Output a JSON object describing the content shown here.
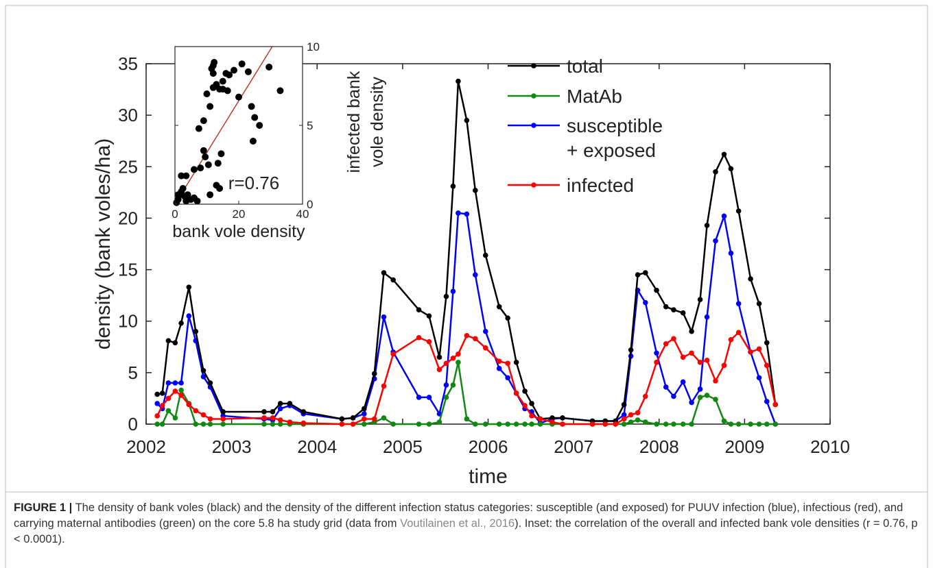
{
  "chart_data": [
    {
      "type": "line",
      "xlabel": "time",
      "ylabel": "density (bank voles/ha)",
      "xlim": [
        2002,
        2010
      ],
      "ylim": [
        0,
        35
      ],
      "xticks": [
        2002,
        2003,
        2004,
        2005,
        2006,
        2007,
        2008,
        2009,
        2010
      ],
      "yticks": [
        0,
        5,
        10,
        15,
        20,
        25,
        30,
        35
      ],
      "legend": "upper right",
      "x": [
        2002.13,
        2002.19,
        2002.26,
        2002.34,
        2002.41,
        2002.5,
        2002.58,
        2002.67,
        2002.75,
        2002.9,
        2003.38,
        2003.48,
        2003.57,
        2003.68,
        2003.84,
        2004.29,
        2004.42,
        2004.55,
        2004.67,
        2004.78,
        2004.89,
        2005.19,
        2005.31,
        2005.43,
        2005.51,
        2005.59,
        2005.65,
        2005.75,
        2005.85,
        2005.97,
        2006.13,
        2006.23,
        2006.33,
        2006.43,
        2006.51,
        2006.61,
        2006.75,
        2006.87,
        2007.22,
        2007.37,
        2007.49,
        2007.59,
        2007.67,
        2007.75,
        2007.84,
        2007.97,
        2008.08,
        2008.17,
        2008.28,
        2008.38,
        2008.48,
        2008.56,
        2008.66,
        2008.76,
        2008.84,
        2008.93,
        2009.07,
        2009.17,
        2009.26,
        2009.36
      ],
      "series": [
        {
          "name": "total",
          "color": "#000000",
          "values": [
            2.9,
            3.0,
            8.1,
            7.9,
            9.8,
            13.3,
            9.0,
            5.2,
            4.0,
            1.2,
            1.2,
            1.2,
            2.0,
            2.0,
            1.2,
            0.5,
            0.6,
            1.5,
            4.9,
            14.7,
            14.0,
            11.1,
            10.5,
            6.5,
            12.4,
            23.1,
            33.3,
            29.5,
            22.7,
            16.4,
            11.4,
            10.3,
            6.0,
            3.2,
            2.0,
            0.5,
            0.6,
            0.6,
            0.3,
            0.3,
            0.3,
            1.9,
            7.2,
            14.5,
            14.7,
            13.0,
            11.4,
            11.1,
            10.8,
            9.0,
            12.1,
            19.3,
            24.5,
            26.2,
            24.8,
            20.7,
            14.1,
            11.7,
            7.9,
            1.9
          ]
        },
        {
          "name": "MatAb",
          "color": "#118811",
          "values": [
            0,
            0,
            1.3,
            0.6,
            3.3,
            2.0,
            0,
            0,
            0,
            0,
            0,
            0,
            0,
            0,
            0,
            0,
            0,
            0,
            0.2,
            0.6,
            0,
            0,
            0,
            0.2,
            2.6,
            3.8,
            6.0,
            0.5,
            0,
            0,
            0,
            0,
            0,
            0,
            0,
            0,
            0,
            0,
            0,
            0,
            0,
            0,
            0.2,
            0.4,
            0.2,
            0,
            0,
            0,
            0,
            0,
            2.6,
            2.8,
            2.4,
            0.3,
            0,
            0,
            0,
            0,
            0,
            0
          ]
        },
        {
          "name": "susceptible\n+ exposed",
          "color": "#0000ff",
          "values": [
            2.0,
            1.5,
            4.0,
            4.0,
            4.0,
            10.5,
            8.1,
            4.6,
            3.6,
            0.8,
            0.5,
            0.4,
            1.5,
            1.8,
            1.0,
            0.5,
            0.6,
            1.0,
            4.4,
            10.4,
            7.0,
            2.6,
            2.6,
            1.0,
            3.8,
            12.9,
            20.5,
            20.4,
            14.5,
            9.0,
            5.4,
            4.5,
            3.0,
            1.5,
            1.2,
            0.1,
            0.5,
            0.6,
            0.3,
            0.3,
            0.3,
            0.9,
            6.6,
            13.0,
            11.8,
            6.9,
            3.6,
            2.7,
            4.1,
            2.1,
            3.4,
            10.4,
            17.8,
            20.2,
            16.6,
            11.7,
            7.0,
            4.5,
            2.2,
            0
          ]
        },
        {
          "name": "infected",
          "color": "#ff0000",
          "values": [
            0.8,
            1.8,
            2.5,
            3.2,
            2.8,
            1.9,
            1.3,
            0.9,
            0.5,
            0.5,
            0.6,
            0.6,
            0.4,
            0.2,
            0.1,
            0,
            0,
            0.5,
            0.5,
            3.7,
            6.8,
            8.4,
            8.0,
            5.3,
            5.9,
            6.4,
            6.8,
            8.6,
            8.3,
            7.4,
            6.1,
            5.9,
            3.0,
            1.8,
            0.8,
            0.5,
            0.2,
            0,
            0,
            0,
            0,
            0.5,
            0.9,
            1.1,
            2.7,
            6.0,
            7.8,
            8.3,
            6.5,
            6.9,
            6.0,
            6.2,
            4.2,
            5.7,
            8.2,
            8.9,
            7.0,
            7.3,
            5.7,
            1.9
          ]
        }
      ]
    },
    {
      "type": "scatter",
      "xlabel": "bank vole density",
      "ylabel": "infected bank\nvole density",
      "annotation": "r=0.76",
      "xlim": [
        0,
        40
      ],
      "ylim": [
        0,
        10
      ],
      "xticks": [
        0,
        20,
        40
      ],
      "yticks": [
        0,
        5,
        10
      ],
      "color": "#000000",
      "x": [
        0.5,
        1,
        1.5,
        2,
        2.5,
        1,
        3,
        3.5,
        5,
        6,
        7,
        4,
        2,
        3.5,
        6,
        8,
        9,
        9.5,
        10.5,
        11,
        13,
        14,
        13.5,
        14.5,
        7.5,
        9,
        10,
        11,
        12,
        11.5,
        12,
        13,
        14,
        15,
        16.5,
        15,
        16,
        17,
        18.5,
        20,
        21,
        23,
        24,
        25,
        24.5,
        26.5,
        29.5,
        33,
        12,
        12.3
      ],
      "y": [
        0.1,
        0.3,
        0.6,
        0.8,
        1.0,
        0.6,
        0.5,
        0.2,
        0.3,
        0.4,
        0.2,
        0.6,
        1.8,
        1.8,
        2.2,
        2.3,
        3.4,
        3.0,
        2.5,
        0.6,
        1.2,
        1.0,
        2.6,
        3.2,
        4.8,
        5.3,
        7.0,
        6.2,
        7.4,
        8.6,
        8.3,
        7.6,
        7.3,
        7.3,
        7.2,
        7.8,
        8.3,
        8.2,
        8.5,
        6.8,
        8.9,
        8.4,
        6.2,
        5.5,
        4.0,
        5.0,
        8.7,
        7.2,
        8.8,
        9.0
      ],
      "fit_line": {
        "color": "#c0392b",
        "x": [
          0,
          30.5
        ],
        "y": [
          0,
          10
        ]
      }
    }
  ],
  "caption": {
    "label": "FIGURE 1 |",
    "text_1": " The density of bank voles (black) and the density of the different infection status categories: susceptible (and exposed) for PUUV infection (blue), infectious (red), and carrying maternal antibodies (green) on the core 5.8 ha study grid (data from ",
    "link": "Voutilainen et al., 2016",
    "text_2": "). Inset: the correlation of the overall and infected bank vole densities (r = 0.76, p < 0.0001)."
  }
}
